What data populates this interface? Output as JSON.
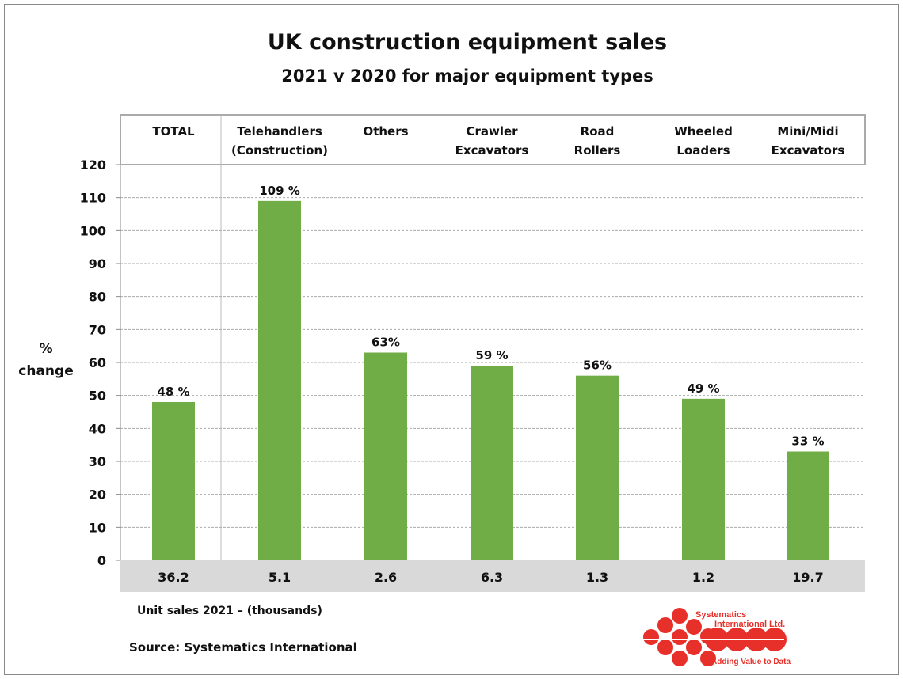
{
  "chart_data": {
    "type": "bar",
    "title": "UK construction equipment sales",
    "subtitle": "2021  v  2020 for major  equipment types",
    "ylabel": [
      "%",
      "change"
    ],
    "ylim": [
      0,
      120
    ],
    "yticks": [
      0,
      10,
      20,
      30,
      40,
      50,
      60,
      70,
      80,
      90,
      100,
      110,
      120
    ],
    "grid": true,
    "categories": [
      [
        "TOTAL"
      ],
      [
        "Telehandlers",
        "(Construction)"
      ],
      [
        "Others"
      ],
      [
        "Crawler",
        "Excavators"
      ],
      [
        "Road",
        "Rollers"
      ],
      [
        "Wheeled",
        "Loaders"
      ],
      [
        "Mini/Midi",
        "Excavators"
      ]
    ],
    "values": [
      48,
      109,
      63,
      59,
      56,
      49,
      33
    ],
    "value_labels": [
      "48 %",
      "109  %",
      "63%",
      "59 %",
      "56%",
      "49 %",
      "33 %"
    ],
    "unit_sales_2021": [
      "36.2",
      "5.1",
      "2.6",
      "6.3",
      "1.3",
      "1.2",
      "19.7"
    ],
    "bar_color": "#70AD47"
  },
  "footer": {
    "unit_sales_label": "Unit sales 2021 – (thousands)",
    "source": "Source: Systematics International"
  },
  "logo": {
    "name": "Systematics International Ltd.",
    "tagline": "Adding Value to Data",
    "color": "#E8302A"
  }
}
